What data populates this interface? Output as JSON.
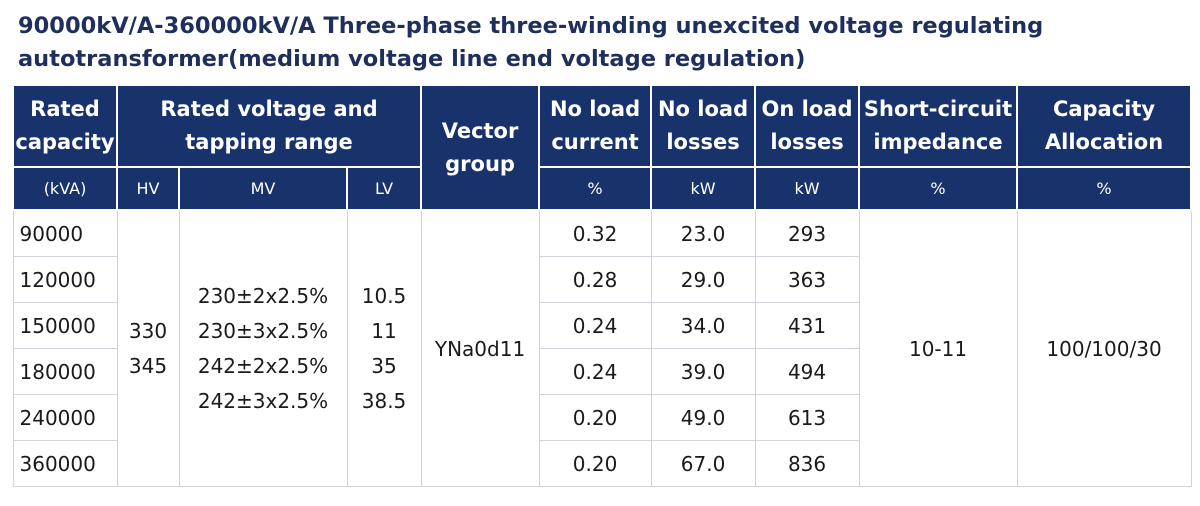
{
  "title": "90000kV/A-360000kV/A Three-phase three-winding unexcited voltage regulating autotransformer(medium voltage line end voltage regulation)",
  "headers": {
    "rated_capacity": "Rated capacity",
    "rated_voltage": "Rated voltage and tapping range",
    "vector_group": "Vector group",
    "no_load_current": "No load current",
    "no_load_losses": "No load losses",
    "on_load_losses": "On load losses",
    "short_circuit": "Short-circuit impedance",
    "capacity_allocation": "Capacity Allocation"
  },
  "units": {
    "capacity": "(kVA)",
    "hv": "HV",
    "mv": "MV",
    "lv": "LV",
    "current": "%",
    "no_load_losses": "kW",
    "on_load_losses": "kW",
    "impedance": "%",
    "allocation": "%"
  },
  "rows": [
    {
      "capacity": "90000",
      "no_load_current": "0.32",
      "no_load_losses": "23.0",
      "on_load_losses": "293"
    },
    {
      "capacity": "120000",
      "no_load_current": "0.28",
      "no_load_losses": "29.0",
      "on_load_losses": "363"
    },
    {
      "capacity": "150000",
      "no_load_current": "0.24",
      "no_load_losses": "34.0",
      "on_load_losses": "431"
    },
    {
      "capacity": "180000",
      "no_load_current": "0.24",
      "no_load_losses": "39.0",
      "on_load_losses": "494"
    },
    {
      "capacity": "240000",
      "no_load_current": "0.20",
      "no_load_losses": "49.0",
      "on_load_losses": "613"
    },
    {
      "capacity": "360000",
      "no_load_current": "0.20",
      "no_load_losses": "67.0",
      "on_load_losses": "836"
    }
  ],
  "hv_values": [
    "330",
    "345"
  ],
  "mv_values": [
    "230±2x2.5%",
    "230±3x2.5%",
    "242±2x2.5%",
    "242±3x2.5%"
  ],
  "lv_values": [
    "10.5",
    "11",
    "35",
    "38.5"
  ],
  "vector_group_value": "YNa0d11",
  "impedance_value": "10-11",
  "allocation_value": "100/100/30"
}
